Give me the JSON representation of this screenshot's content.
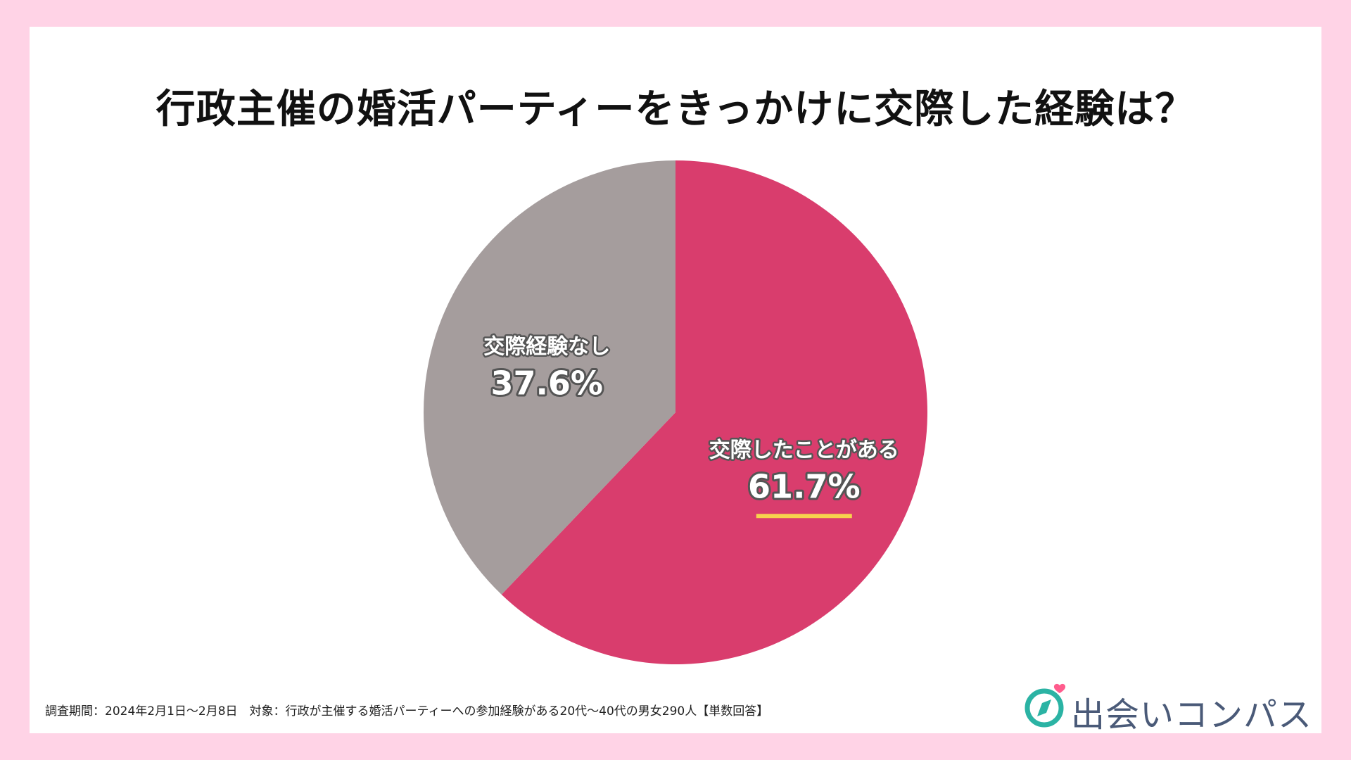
{
  "title": "行政主催の婚活パーティーをきっかけに交際した経験は？",
  "chart_data": {
    "type": "pie",
    "title": "行政主催の婚活パーティーをきっかけに交際した経験は？",
    "slices": [
      {
        "label": "交際したことがある",
        "value": 61.7,
        "value_label": "61.7%",
        "color": "#d93d6d",
        "highlight_color": "#f7d34d"
      },
      {
        "label": "交際経験なし",
        "value": 37.6,
        "value_label": "37.6%",
        "color": "#a59d9d"
      }
    ],
    "start_angle_deg": 0,
    "direction": "clockwise"
  },
  "footnote": "調査期間：2024年2月1日〜2月8日　対象：行政が主催する婚活パーティーへの参加経験がある20代〜40代の男女290人【単数回答】",
  "brand": {
    "name": "出会いコンパス",
    "icon": "compass-heart-icon",
    "accent": "#2bb3a4",
    "heart_color": "#ff5c8d"
  }
}
